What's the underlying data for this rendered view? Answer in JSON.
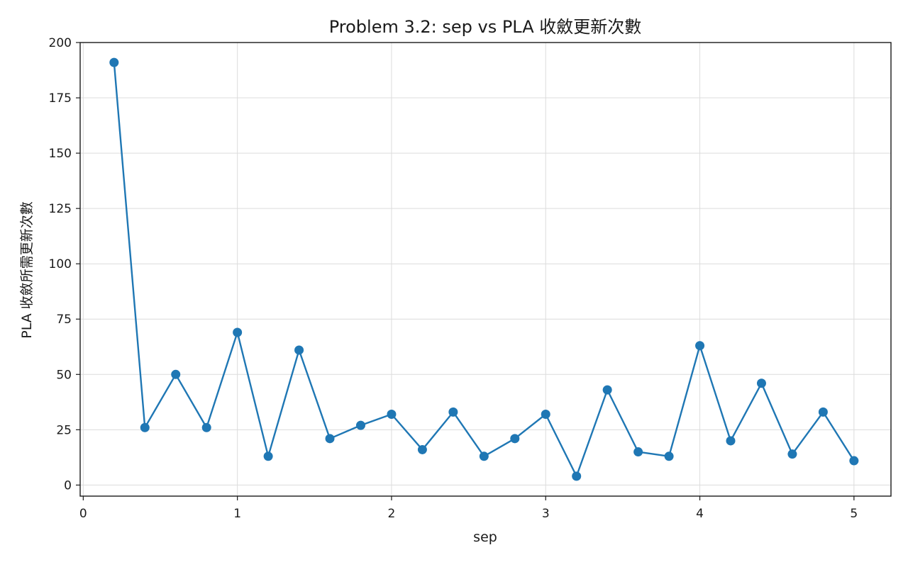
{
  "chart_data": {
    "type": "line",
    "title": "Problem 3.2: sep vs PLA 收斂更新次數",
    "xlabel": "sep",
    "ylabel": "PLA 收斂所需更新次數",
    "xlim": [
      -0.02,
      5.24
    ],
    "ylim": [
      -5,
      200
    ],
    "xticks": [
      0,
      1,
      2,
      3,
      4,
      5
    ],
    "yticks": [
      0,
      25,
      50,
      75,
      100,
      125,
      150,
      175,
      200
    ],
    "grid": true,
    "color": "#1f77b4",
    "series": [
      {
        "x": [
          0.2,
          0.4,
          0.6,
          0.8,
          1.0,
          1.2,
          1.4,
          1.6,
          1.8,
          2.0,
          2.2,
          2.4,
          2.6,
          2.8,
          3.0,
          3.2,
          3.4,
          3.6,
          3.8,
          4.0,
          4.2,
          4.4,
          4.6,
          4.8,
          5.0
        ],
        "y": [
          191,
          26,
          50,
          26,
          69,
          13,
          61,
          21,
          27,
          32,
          16,
          33,
          13,
          21,
          32,
          4,
          43,
          15,
          13,
          63,
          20,
          46,
          14,
          33,
          11
        ]
      }
    ]
  }
}
